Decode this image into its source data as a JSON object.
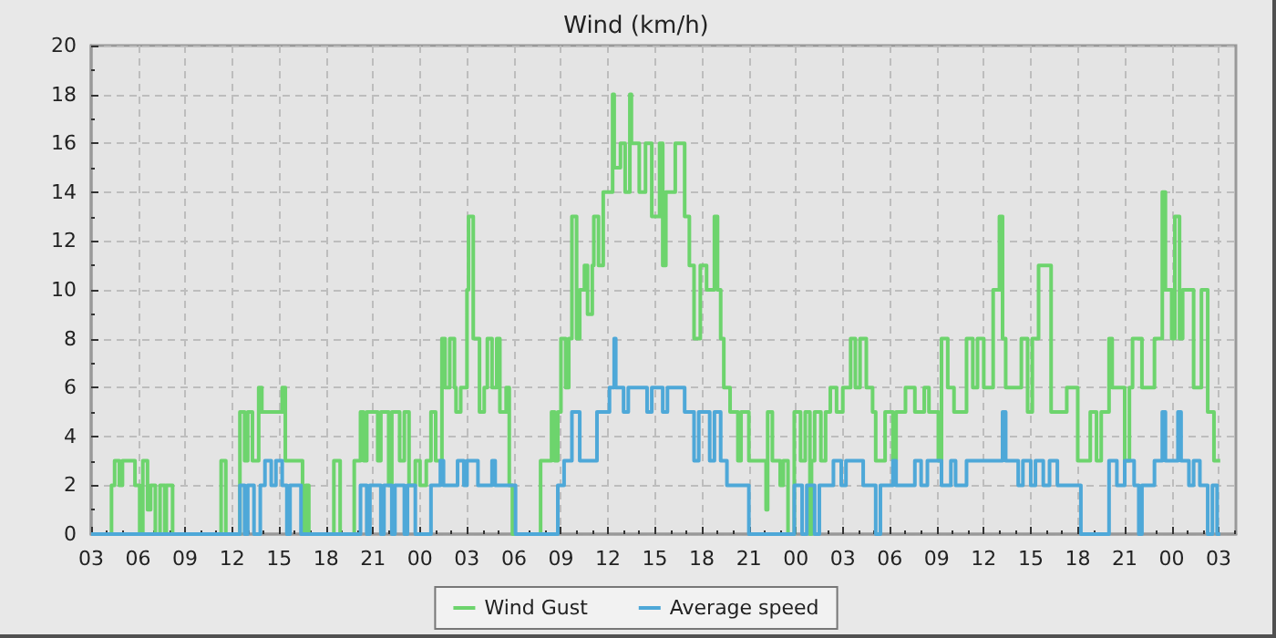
{
  "chart_data": {
    "type": "step",
    "title": "Wind (km/h)",
    "xlim": [
      3,
      76.1
    ],
    "xticks": [
      {
        "value": 3,
        "label": "03"
      },
      {
        "value": 6,
        "label": "06"
      },
      {
        "value": 9,
        "label": "09"
      },
      {
        "value": 12,
        "label": "12"
      },
      {
        "value": 15,
        "label": "15"
      },
      {
        "value": 18,
        "label": "18"
      },
      {
        "value": 21,
        "label": "21"
      },
      {
        "value": 24,
        "label": "00"
      },
      {
        "value": 27,
        "label": "03"
      },
      {
        "value": 30,
        "label": "06"
      },
      {
        "value": 33,
        "label": "09"
      },
      {
        "value": 36,
        "label": "12"
      },
      {
        "value": 39,
        "label": "15"
      },
      {
        "value": 42,
        "label": "18"
      },
      {
        "value": 45,
        "label": "21"
      },
      {
        "value": 48,
        "label": "00"
      },
      {
        "value": 51,
        "label": "03"
      },
      {
        "value": 54,
        "label": "06"
      },
      {
        "value": 57,
        "label": "09"
      },
      {
        "value": 60,
        "label": "12"
      },
      {
        "value": 63,
        "label": "15"
      },
      {
        "value": 66,
        "label": "18"
      },
      {
        "value": 69,
        "label": "21"
      },
      {
        "value": 72,
        "label": "00"
      },
      {
        "value": 75,
        "label": "03"
      }
    ],
    "ylim": [
      0,
      20
    ],
    "yticks": [
      0,
      2,
      4,
      6,
      8,
      10,
      12,
      14,
      16,
      18,
      20
    ],
    "grid": true,
    "legend": "bottom",
    "marker": "none",
    "line_style": "solid",
    "series": [
      {
        "name": "Wind Gust",
        "color": "#6dd46d",
        "x": [
          3,
          4.3,
          4.5,
          4.8,
          5.0,
          5.8,
          6.1,
          6.3,
          6.6,
          6.8,
          7.1,
          7.4,
          7.7,
          7.8,
          8.2,
          11.3,
          11.6,
          12.5,
          12.8,
          13.0,
          13.3,
          13.7,
          13.9,
          15.2,
          15.4,
          16.5,
          16.7,
          16.9,
          18.5,
          18.9,
          19.8,
          20.2,
          20.4,
          20.6,
          21.3,
          21.5,
          22.0,
          22.2,
          22.7,
          23.0,
          23.3,
          23.7,
          24.0,
          24.4,
          24.7,
          25.0,
          25.4,
          25.6,
          25.9,
          26.2,
          26.3,
          26.6,
          27.0,
          27.1,
          27.4,
          27.8,
          28.1,
          28.3,
          28.6,
          28.9,
          29.1,
          29.5,
          29.7,
          29.9,
          31.7,
          32.4,
          32.6,
          32.8,
          33.0,
          33.3,
          33.5,
          33.7,
          34.0,
          34.2,
          34.5,
          34.7,
          35.0,
          35.1,
          35.4,
          35.7,
          36.3,
          36.4,
          36.8,
          37.1,
          37.4,
          37.5,
          38.0,
          38.4,
          38.8,
          39.3,
          39.5,
          39.7,
          40.3,
          40.9,
          41.2,
          41.5,
          41.9,
          42.3,
          42.8,
          43.0,
          43.2,
          43.4,
          43.8,
          44.3,
          44.5,
          45.0,
          46.1,
          46.2,
          46.5,
          47.0,
          47.2,
          47.5,
          47.9,
          48.3,
          48.6,
          48.9,
          49.0,
          49.2,
          49.6,
          49.9,
          50.2,
          50.6,
          51.0,
          51.5,
          51.8,
          52.1,
          52.5,
          52.9,
          53.1,
          53.7,
          54.2,
          54.4,
          55.0,
          55.6,
          56.2,
          56.5,
          57.1,
          57.3,
          57.7,
          58.1,
          58.9,
          59.3,
          59.6,
          60.0,
          60.6,
          61.0,
          61.2,
          61.4,
          62.4,
          62.8,
          63.1,
          63.5,
          64.3,
          65.3,
          66.0,
          66.8,
          67.2,
          67.5,
          68.0,
          68.2,
          69.0,
          69.3,
          69.5,
          70.1,
          70.9,
          71.4,
          71.6,
          72.0,
          72.2,
          72.5,
          72.7,
          73.4,
          73.9,
          74.3,
          74.7,
          75.1
        ],
        "values": [
          0,
          2,
          3,
          2,
          3,
          2,
          0,
          3,
          1,
          2,
          0,
          2,
          0,
          2,
          0,
          3,
          0,
          5,
          3,
          5,
          3,
          6,
          5,
          6,
          3,
          0,
          2,
          0,
          3,
          0,
          3,
          5,
          3,
          5,
          3,
          5,
          2,
          5,
          3,
          5,
          2,
          3,
          2,
          3,
          5,
          3,
          8,
          6,
          8,
          6,
          5,
          6,
          10,
          13,
          8,
          5,
          6,
          8,
          6,
          8,
          5,
          6,
          2,
          0,
          3,
          5,
          3,
          5,
          8,
          6,
          8,
          13,
          8,
          10,
          11,
          9,
          11,
          13,
          11,
          14,
          18,
          15,
          16,
          14,
          18,
          16,
          14,
          16,
          13,
          16,
          11,
          14,
          16,
          13,
          11,
          8,
          11,
          10,
          13,
          10,
          8,
          6,
          5,
          3,
          5,
          3,
          1,
          5,
          3,
          2,
          3,
          0,
          5,
          3,
          5,
          0,
          3,
          5,
          3,
          5,
          6,
          5,
          6,
          8,
          6,
          8,
          6,
          5,
          3,
          5,
          3,
          5,
          6,
          5,
          6,
          5,
          3,
          8,
          6,
          5,
          8,
          6,
          8,
          6,
          10,
          13,
          8,
          6,
          8,
          5,
          8,
          11,
          5,
          6,
          3,
          5,
          3,
          5,
          8,
          6,
          3,
          6,
          8,
          6,
          8,
          14,
          10,
          8,
          13,
          8,
          10,
          6,
          10,
          5,
          3,
          3
        ]
      },
      {
        "name": "Average speed",
        "color": "#4ea8d8",
        "x": [
          3,
          12.5,
          12.8,
          13.0,
          13.4,
          13.8,
          14.1,
          14.5,
          14.8,
          15.2,
          15.5,
          15.7,
          16.4,
          20.2,
          20.6,
          20.8,
          21.5,
          21.7,
          22.2,
          22.4,
          23.0,
          23.2,
          23.7,
          24.7,
          25.3,
          25.5,
          26.4,
          26.8,
          27.0,
          27.7,
          28.6,
          28.8,
          30.1,
          32.8,
          33.2,
          33.7,
          34.2,
          35.3,
          36.1,
          36.4,
          36.5,
          37.0,
          37.3,
          38.5,
          38.8,
          39.5,
          39.8,
          40.9,
          41.5,
          41.8,
          42.5,
          42.8,
          43.2,
          43.6,
          45.0,
          47.9,
          48.4,
          48.7,
          49.2,
          49.5,
          50.4,
          50.9,
          51.2,
          52.3,
          53.1,
          53.4,
          54.2,
          54.4,
          55.6,
          56.0,
          56.4,
          57.3,
          57.9,
          58.2,
          58.9,
          61.2,
          61.4,
          62.2,
          62.5,
          63.0,
          63.3,
          63.8,
          64.2,
          64.7,
          66.2,
          68.0,
          68.5,
          69.0,
          69.6,
          69.9,
          70.1,
          70.9,
          71.4,
          71.6,
          72.4,
          72.6,
          73.1,
          73.4,
          73.8,
          74.3,
          74.6,
          74.9,
          75.1
        ],
        "values": [
          0,
          2,
          0,
          2,
          0,
          2,
          3,
          2,
          3,
          2,
          0,
          2,
          0,
          2,
          0,
          2,
          0,
          2,
          0,
          2,
          0,
          2,
          0,
          2,
          3,
          2,
          3,
          2,
          3,
          2,
          3,
          2,
          0,
          2,
          3,
          5,
          3,
          5,
          6,
          8,
          6,
          5,
          6,
          5,
          6,
          5,
          6,
          5,
          3,
          5,
          3,
          5,
          3,
          2,
          0,
          2,
          0,
          2,
          0,
          2,
          3,
          2,
          3,
          2,
          0,
          2,
          3,
          2,
          3,
          2,
          3,
          2,
          3,
          2,
          3,
          5,
          3,
          2,
          3,
          2,
          3,
          2,
          3,
          2,
          0,
          3,
          2,
          3,
          2,
          0,
          2,
          3,
          5,
          3,
          5,
          3,
          2,
          3,
          2,
          0,
          2,
          0,
          0
        ]
      }
    ]
  }
}
